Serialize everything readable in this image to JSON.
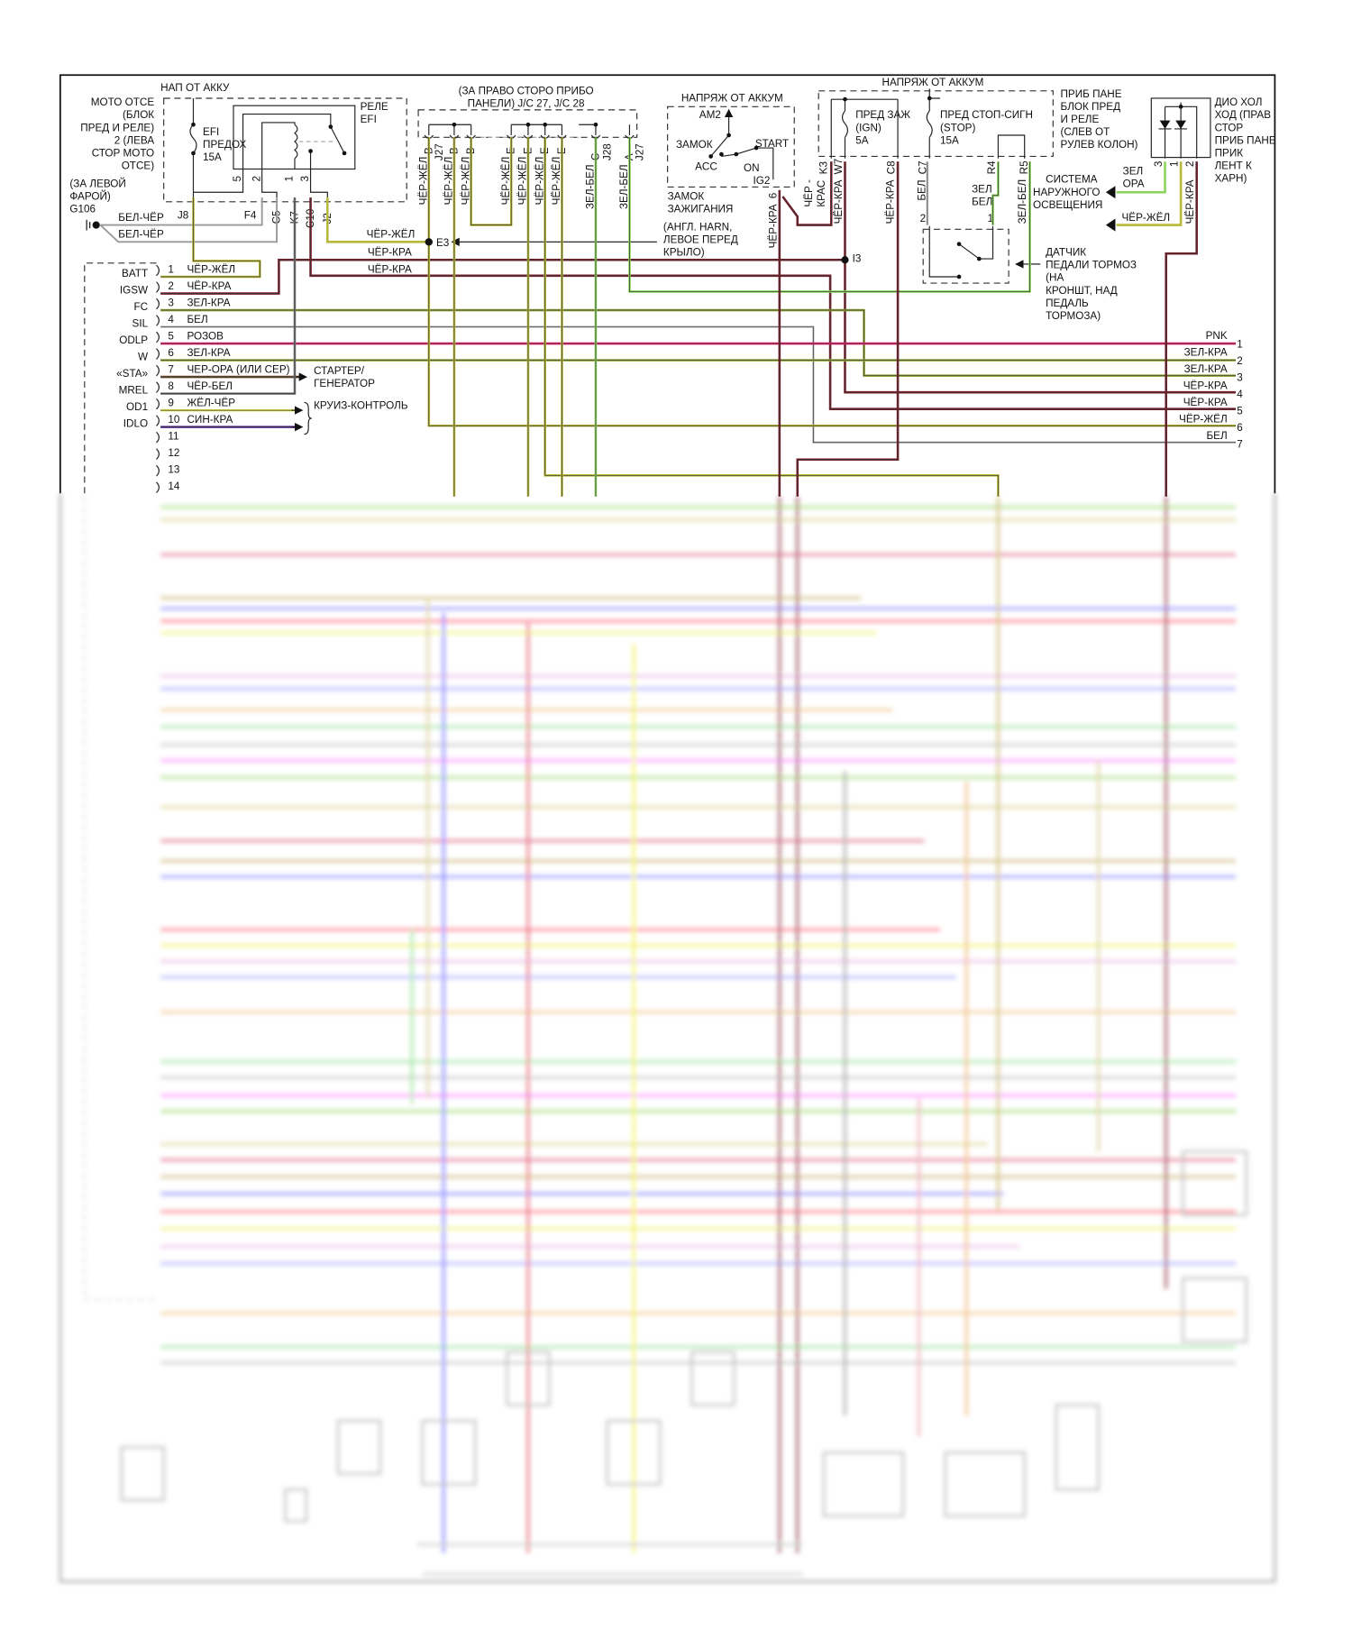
{
  "engine_relay_block": {
    "supply": "НАП ОТ АККУ",
    "location": [
      "МОТО ОТСЕ",
      "(БЛОК",
      "ПРЕД И РЕЛЕ)",
      "2 (ЛЕВА",
      "СТОР МОТО",
      "ОТСЕ)"
    ],
    "fuse": [
      "EFI",
      "ПРЕДОХ",
      "15A"
    ],
    "relay": [
      "РЕЛЕ",
      "EFI"
    ],
    "relay_pins": [
      "5",
      "2",
      "1",
      "3"
    ],
    "connectors": [
      "J8",
      "F4",
      "C5",
      "K7",
      "C10",
      "J2"
    ]
  },
  "ground": {
    "location": [
      "(ЗА ЛЕВОЙ",
      "ФАРОЙ)",
      "G106"
    ],
    "wires": [
      "БЕЛ-ЧЁР",
      "БЕЛ-ЧЁР"
    ]
  },
  "junction": {
    "title": [
      "(ЗА ПРАВО СТОРО ПРИБО",
      "ПАНЕЛИ) J/C 27, J/C 28"
    ],
    "pins": [
      "B",
      "B",
      "B",
      "E",
      "E",
      "E",
      "E",
      "C",
      "A"
    ],
    "connector_labels": [
      "J27",
      "J28",
      "J27"
    ],
    "wires": [
      "ЧЁР-ЖЁЛ",
      "ЧЁР-ЖЁЛ",
      "ЧЁР-ЖЁЛ",
      "ЧЁР-ЖЁЛ",
      "ЧЁР-ЖЁЛ",
      "ЧЁР-ЖЁЛ",
      "ЧЁР-ЖЁЛ",
      "ЗЕЛ-БЕЛ",
      "ЗЕЛ-БЕЛ"
    ]
  },
  "splice_e3": {
    "label": "E3",
    "wires": [
      "ЧЁР-ЖЁЛ",
      "ЧЁР-КРА",
      "ЧЁР-КРА"
    ]
  },
  "ignition_switch": {
    "supply": "НАПРЯЖ ОТ АККУМ",
    "positions": {
      "am2": "AM2",
      "lock": "ЗАМОК",
      "acc": "ACC",
      "on": "ON",
      "start": "START",
      "ig2": "IG2"
    },
    "pin": "6",
    "wire": "ЧЁР-КРА",
    "name": [
      "ЗАМОК",
      "ЗАЖИГАНИЯ"
    ],
    "harness_note": [
      "(АНГЛ. HARN,",
      "ЛЕВОЕ ПЕРЕД",
      "КРЫЛО)"
    ]
  },
  "fuse_block": {
    "supply": "НАПРЯЖ ОТ АККУМ",
    "ign_fuse": [
      "ПРЕД ЗАЖ",
      "(IGN)",
      "5A"
    ],
    "stop_fuse": [
      "ПРЕД СТОП-СИГН",
      "(STOP)",
      "15A"
    ],
    "location": [
      "ПРИБ ПАНЕ",
      "БЛОК ПРЕД",
      "И РЕЛЕ",
      "(СЛЕВ ОТ",
      "РУЛЕВ КОЛОН)"
    ],
    "pins": [
      "K3",
      "W7",
      "C8",
      "C7",
      "R4",
      "R5"
    ],
    "wires": [
      "ЧЁР -",
      "КРАС",
      "ЧЁР-КРА",
      "ЧЁР-КРА",
      "БЕЛ",
      "ЗЕЛ",
      "БЕЛ",
      "ЗЕЛ-БЕЛ"
    ],
    "splice_i3": "I3"
  },
  "brake_switch": {
    "pins": [
      "2",
      "1"
    ],
    "name": [
      "ДАТЧИК",
      "ПЕДАЛИ ТОРМОЗ",
      "(НА",
      "КРОНШТ, НАД",
      "ПЕДАЛЬ",
      "ТОРМОЗА)"
    ]
  },
  "lighting": {
    "name": [
      "СИСТЕМА",
      "НАРУЖНОГО",
      "ОСВЕЩЕНИЯ"
    ],
    "wire_top": [
      "ЗЕЛ",
      "ОРА"
    ],
    "wire_bottom": "ЧЁР-ЖЁЛ"
  },
  "diode": {
    "pins": [
      "3",
      "1",
      "2"
    ],
    "wire": "ЧЁР-КРА",
    "name": [
      "ДИО ХОЛ",
      "ХОД (ПРАВ",
      "СТОР",
      "ПРИБ ПАНЕ",
      "ПРИК",
      "ЛЕНТ К",
      "ХАРН)"
    ]
  },
  "ecu_connector": {
    "pins": [
      {
        "num": "1",
        "name": "BATT",
        "wire": "ЧЁР-ЖЁЛ"
      },
      {
        "num": "2",
        "name": "IGSW",
        "wire": "ЧЁР-КРА"
      },
      {
        "num": "3",
        "name": "FC",
        "wire": "ЗЕЛ-КРА"
      },
      {
        "num": "4",
        "name": "SIL",
        "wire": "БЕЛ"
      },
      {
        "num": "5",
        "name": "ODLP",
        "wire": "РОЗОВ"
      },
      {
        "num": "6",
        "name": "W",
        "wire": "ЗЕЛ-КРА"
      },
      {
        "num": "7",
        "name": "«STA»",
        "wire": "ЧЕР-ОРА (ИЛИ СЕР)"
      },
      {
        "num": "8",
        "name": "MREL",
        "wire": "ЧЁР-БЕЛ"
      },
      {
        "num": "9",
        "name": "OD1",
        "wire": "ЖЁЛ-ЧЁР"
      },
      {
        "num": "10",
        "name": "IDLO",
        "wire": "СИН-КРА"
      },
      {
        "num": "11",
        "name": "",
        "wire": ""
      },
      {
        "num": "12",
        "name": "",
        "wire": ""
      },
      {
        "num": "13",
        "name": "",
        "wire": ""
      },
      {
        "num": "14",
        "name": "",
        "wire": ""
      }
    ],
    "starter": [
      "СТАРТЕР/",
      "ГЕНЕРАТОР"
    ],
    "cruise": "КРУИЗ-КОНТРОЛЬ"
  },
  "right_connector": [
    {
      "num": "1",
      "wire": "PNK"
    },
    {
      "num": "2",
      "wire": "ЗЕЛ-КРА"
    },
    {
      "num": "3",
      "wire": "ЗЕЛ-КРА"
    },
    {
      "num": "4",
      "wire": "ЧЁР-КРА"
    },
    {
      "num": "5",
      "wire": "ЧЁР-КРА"
    },
    {
      "num": "6",
      "wire": "ЧЁР-ЖЁЛ"
    },
    {
      "num": "7",
      "wire": "БЕЛ"
    }
  ],
  "wire_colors": {
    "black_yellow": "#b8b83a",
    "black_red": "#7a1f2a",
    "green_red": "#93a838",
    "white": "#c8c8c8",
    "pink": "#e2226c",
    "green_white": "#8ad35c",
    "black_orange": "#6b4a2a",
    "black_white": "#777777",
    "yellow_black": "#e8e84a",
    "blue_red": "#5a2a9a"
  }
}
